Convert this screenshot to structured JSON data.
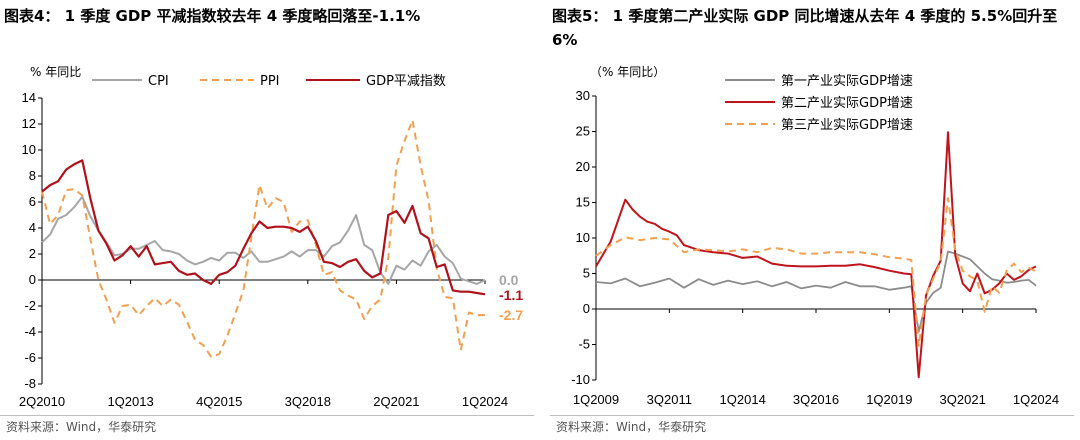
{
  "left": {
    "title": "图表4： 1 季度 GDP 平减指数较去年 4 季度略回落至-1.1%",
    "source": "资料来源：Wind，华泰研究",
    "chart_data": {
      "type": "line",
      "unit_label": "% 年同比",
      "categories": [
        "2Q2010",
        "1Q2013",
        "4Q2015",
        "3Q2018",
        "2Q2021",
        "1Q2024"
      ],
      "ylim": [
        -8,
        14
      ],
      "yticks": [
        -8,
        -6,
        -4,
        -2,
        0,
        2,
        4,
        6,
        8,
        10,
        12,
        14
      ],
      "x_range": [
        2010.25,
        2024.0
      ],
      "x_tick_positions": [
        2010.25,
        2013.0,
        2015.75,
        2018.5,
        2021.25,
        2024.0
      ],
      "series": [
        {
          "name": "CPI",
          "color": "#a6a6a6",
          "dash": "",
          "x": [
            2010.25,
            2010.5,
            2010.75,
            2011.0,
            2011.25,
            2011.5,
            2011.75,
            2012.0,
            2012.25,
            2012.5,
            2012.75,
            2013.0,
            2013.25,
            2013.5,
            2013.75,
            2014.0,
            2014.25,
            2014.5,
            2014.75,
            2015.0,
            2015.25,
            2015.5,
            2015.75,
            2016.0,
            2016.25,
            2016.5,
            2016.75,
            2017.0,
            2017.25,
            2017.5,
            2017.75,
            2018.0,
            2018.25,
            2018.5,
            2018.75,
            2019.0,
            2019.25,
            2019.5,
            2019.75,
            2020.0,
            2020.25,
            2020.5,
            2020.75,
            2021.0,
            2021.25,
            2021.5,
            2021.75,
            2022.0,
            2022.25,
            2022.5,
            2022.75,
            2023.0,
            2023.25,
            2023.5,
            2023.75,
            2024.0
          ],
          "values": [
            2.9,
            3.5,
            4.7,
            5.0,
            5.6,
            6.4,
            4.9,
            3.8,
            2.9,
            1.9,
            2.0,
            2.4,
            2.4,
            2.7,
            3.0,
            2.3,
            2.2,
            2.0,
            1.5,
            1.2,
            1.4,
            1.7,
            1.5,
            2.1,
            2.1,
            1.7,
            2.2,
            1.4,
            1.4,
            1.6,
            1.8,
            2.2,
            1.8,
            2.3,
            2.3,
            1.8,
            2.6,
            2.9,
            3.8,
            5.0,
            2.7,
            2.3,
            0.6,
            -0.3,
            1.1,
            0.8,
            1.5,
            1.1,
            2.2,
            2.7,
            1.8,
            1.3,
            0.1,
            -0.1,
            -0.3,
            0.0
          ]
        },
        {
          "name": "PPI",
          "color": "#f0a050",
          "dash": "7,5",
          "x": [
            2010.25,
            2010.5,
            2010.75,
            2011.0,
            2011.25,
            2011.5,
            2011.75,
            2012.0,
            2012.25,
            2012.5,
            2012.75,
            2013.0,
            2013.25,
            2013.5,
            2013.75,
            2014.0,
            2014.25,
            2014.5,
            2014.75,
            2015.0,
            2015.25,
            2015.5,
            2015.75,
            2016.0,
            2016.25,
            2016.5,
            2016.75,
            2017.0,
            2017.25,
            2017.5,
            2017.75,
            2018.0,
            2018.25,
            2018.5,
            2018.75,
            2019.0,
            2019.25,
            2019.5,
            2019.75,
            2020.0,
            2020.25,
            2020.5,
            2020.75,
            2021.0,
            2021.25,
            2021.5,
            2021.75,
            2022.0,
            2022.25,
            2022.5,
            2022.75,
            2023.0,
            2023.25,
            2023.5,
            2023.75,
            2024.0
          ],
          "values": [
            6.8,
            4.3,
            5.0,
            6.9,
            7.0,
            6.5,
            3.2,
            0.0,
            -1.5,
            -3.3,
            -2.0,
            -1.9,
            -2.7,
            -2.0,
            -1.4,
            -2.0,
            -1.5,
            -1.9,
            -3.2,
            -4.6,
            -5.0,
            -5.9,
            -5.7,
            -4.3,
            -2.6,
            -0.8,
            3.3,
            7.3,
            5.5,
            6.3,
            6.0,
            3.7,
            4.5,
            4.6,
            2.7,
            0.4,
            0.6,
            -0.8,
            -1.2,
            -1.5,
            -3.0,
            -2.0,
            -1.5,
            1.7,
            8.8,
            10.7,
            12.3,
            8.8,
            6.1,
            0.9,
            -1.3,
            -1.4,
            -5.4,
            -2.5,
            -2.7,
            -2.7
          ]
        },
        {
          "name": "GDP平减指数",
          "color": "#b0121b",
          "dash": "",
          "x": [
            2010.25,
            2010.5,
            2010.75,
            2011.0,
            2011.25,
            2011.5,
            2011.75,
            2012.0,
            2012.25,
            2012.5,
            2012.75,
            2013.0,
            2013.25,
            2013.5,
            2013.75,
            2014.0,
            2014.25,
            2014.5,
            2014.75,
            2015.0,
            2015.25,
            2015.5,
            2015.75,
            2016.0,
            2016.25,
            2016.5,
            2016.75,
            2017.0,
            2017.25,
            2017.5,
            2017.75,
            2018.0,
            2018.25,
            2018.5,
            2018.75,
            2019.0,
            2019.25,
            2019.5,
            2019.75,
            2020.0,
            2020.25,
            2020.5,
            2020.75,
            2021.0,
            2021.25,
            2021.5,
            2021.75,
            2022.0,
            2022.25,
            2022.5,
            2022.75,
            2023.0,
            2023.25,
            2023.5,
            2023.75,
            2024.0
          ],
          "values": [
            6.8,
            7.3,
            7.6,
            8.5,
            8.9,
            9.2,
            6.3,
            3.8,
            2.8,
            1.5,
            1.9,
            2.6,
            1.8,
            2.6,
            1.2,
            1.3,
            1.4,
            0.7,
            0.4,
            0.5,
            0.0,
            -0.3,
            0.4,
            0.6,
            1.1,
            2.4,
            3.6,
            4.5,
            4.0,
            4.1,
            4.1,
            4.0,
            3.7,
            4.1,
            3.0,
            1.4,
            1.3,
            1.0,
            1.4,
            1.6,
            0.7,
            0.2,
            0.5,
            5.0,
            5.3,
            4.4,
            5.7,
            3.6,
            3.2,
            1.0,
            1.2,
            -0.8,
            -0.9,
            -0.9,
            -1.0,
            -1.1
          ]
        }
      ],
      "end_labels": [
        {
          "text": "0.0",
          "color": "#a6a6a6",
          "value": 0.0
        },
        {
          "text": "-1.1",
          "color": "#b0121b",
          "value": -1.1
        },
        {
          "text": "-2.7",
          "color": "#f0a050",
          "value": -2.7
        }
      ]
    }
  },
  "right": {
    "title": "图表5： 1 季度第二产业实际 GDP 同比增速从去年 4 季度的 5.5%回升至 6%",
    "source": "资料来源：Wind，华泰研究",
    "chart_data": {
      "type": "line",
      "unit_label": "（% 年同比）",
      "categories": [
        "1Q2009",
        "3Q2011",
        "1Q2014",
        "3Q2016",
        "1Q2019",
        "3Q2021",
        "1Q2024"
      ],
      "ylim": [
        -10,
        30
      ],
      "yticks": [
        -10,
        -5,
        0,
        5,
        10,
        15,
        20,
        25,
        30
      ],
      "x_range": [
        2009.0,
        2024.0
      ],
      "x_tick_positions": [
        2009.0,
        2011.5,
        2014.0,
        2016.5,
        2019.0,
        2021.5,
        2024.0
      ],
      "series": [
        {
          "name": "第一产业实际GDP增速",
          "color": "#8c8c8c",
          "dash": "",
          "x": [
            2009.0,
            2009.5,
            2010.0,
            2010.5,
            2011.0,
            2011.5,
            2012.0,
            2012.5,
            2013.0,
            2013.5,
            2014.0,
            2014.5,
            2015.0,
            2015.5,
            2016.0,
            2016.5,
            2017.0,
            2017.5,
            2018.0,
            2018.5,
            2019.0,
            2019.5,
            2019.75,
            2020.0,
            2020.25,
            2020.5,
            2020.75,
            2021.0,
            2021.25,
            2021.5,
            2021.75,
            2022.0,
            2022.25,
            2022.5,
            2022.75,
            2023.0,
            2023.25,
            2023.5,
            2023.75,
            2024.0
          ],
          "values": [
            3.8,
            3.6,
            4.3,
            3.2,
            3.7,
            4.3,
            3.0,
            4.2,
            3.4,
            4.0,
            3.5,
            3.9,
            3.2,
            3.8,
            2.9,
            3.3,
            3.0,
            3.8,
            3.2,
            3.2,
            2.7,
            3.0,
            3.2,
            -3.2,
            0.9,
            2.3,
            3.0,
            8.1,
            7.8,
            7.4,
            7.0,
            6.0,
            5.0,
            4.2,
            4.0,
            3.7,
            3.8,
            4.0,
            4.1,
            3.3
          ]
        },
        {
          "name": "第二产业实际GDP增速",
          "color": "#c0141c",
          "dash": "",
          "x": [
            2009.0,
            2009.5,
            2010.0,
            2010.25,
            2010.5,
            2010.75,
            2011.0,
            2011.25,
            2011.5,
            2011.75,
            2012.0,
            2012.5,
            2013.0,
            2013.5,
            2014.0,
            2014.5,
            2015.0,
            2015.5,
            2016.0,
            2016.5,
            2017.0,
            2017.5,
            2018.0,
            2018.5,
            2019.0,
            2019.5,
            2019.75,
            2020.0,
            2020.25,
            2020.5,
            2020.75,
            2021.0,
            2021.25,
            2021.5,
            2021.75,
            2022.0,
            2022.25,
            2022.5,
            2022.75,
            2023.0,
            2023.25,
            2023.5,
            2023.75,
            2024.0
          ],
          "values": [
            6.0,
            9.5,
            15.4,
            14.0,
            13.0,
            12.3,
            12.0,
            11.3,
            10.9,
            10.4,
            9.0,
            8.3,
            8.0,
            7.8,
            7.2,
            7.4,
            6.4,
            6.1,
            6.0,
            6.0,
            6.1,
            6.1,
            6.3,
            5.9,
            5.4,
            5.0,
            4.9,
            -9.6,
            1.9,
            4.7,
            6.8,
            24.9,
            7.5,
            3.6,
            2.5,
            5.0,
            2.2,
            2.7,
            3.6,
            5.0,
            4.1,
            4.6,
            5.5,
            6.0
          ]
        },
        {
          "name": "第三产业实际GDP增速",
          "color": "#f0a050",
          "dash": "7,5",
          "x": [
            2009.0,
            2009.5,
            2010.0,
            2010.5,
            2011.0,
            2011.5,
            2012.0,
            2012.5,
            2013.0,
            2013.5,
            2014.0,
            2014.5,
            2015.0,
            2015.5,
            2016.0,
            2016.5,
            2017.0,
            2017.5,
            2018.0,
            2018.5,
            2019.0,
            2019.5,
            2019.75,
            2020.0,
            2020.25,
            2020.5,
            2020.75,
            2021.0,
            2021.25,
            2021.5,
            2021.75,
            2022.0,
            2022.25,
            2022.5,
            2022.75,
            2023.0,
            2023.25,
            2023.5,
            2023.75,
            2024.0
          ],
          "values": [
            7.5,
            9.0,
            10.1,
            9.7,
            10.0,
            9.8,
            8.0,
            8.4,
            8.3,
            8.1,
            8.4,
            8.0,
            8.6,
            8.4,
            7.8,
            7.8,
            8.0,
            8.0,
            8.0,
            7.7,
            7.3,
            7.1,
            6.9,
            -5.2,
            1.9,
            4.3,
            6.6,
            15.6,
            8.3,
            5.4,
            4.6,
            4.0,
            -0.4,
            3.2,
            2.3,
            5.4,
            6.4,
            5.2,
            5.8,
            5.3
          ]
        }
      ]
    }
  }
}
